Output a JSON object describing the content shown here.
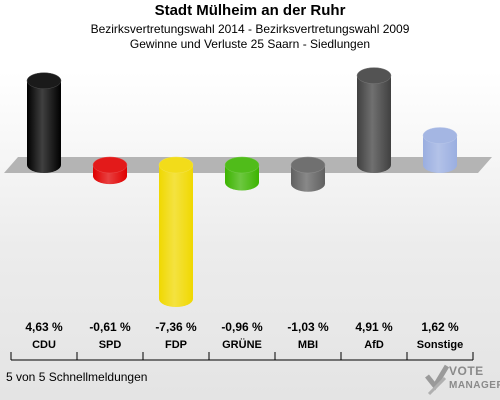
{
  "header": {
    "title": "Stadt Mülheim an der Ruhr",
    "subtitle": "Bezirksvertretungswahl 2014 - Bezirksvertretungswahl 2009",
    "description": "Gewinne und Verluste 25 Saarn - Siedlungen"
  },
  "footer": {
    "text": "5 von 5 Schnellmeldungen"
  },
  "logo": {
    "line1": "VOTE",
    "line2": "MANAGER"
  },
  "chart_data": {
    "type": "bar",
    "categories": [
      "CDU",
      "SPD",
      "FDP",
      "GRÜNE",
      "MBI",
      "AfD",
      "Sonstige"
    ],
    "values": [
      4.63,
      -0.61,
      -7.36,
      -0.96,
      -1.03,
      4.91,
      1.62
    ],
    "value_labels": [
      "4,63 %",
      "-0,61 %",
      "-7,36 %",
      "-0,96 %",
      "-1,03 %",
      "4,91 %",
      "1,62 %"
    ],
    "colors": [
      "#000000",
      "#e00000",
      "#f0d800",
      "#3cb400",
      "#606060",
      "#404040",
      "#9aaee0"
    ],
    "ylim": [
      -7.36,
      4.91
    ],
    "grid": false,
    "legend": "none"
  }
}
